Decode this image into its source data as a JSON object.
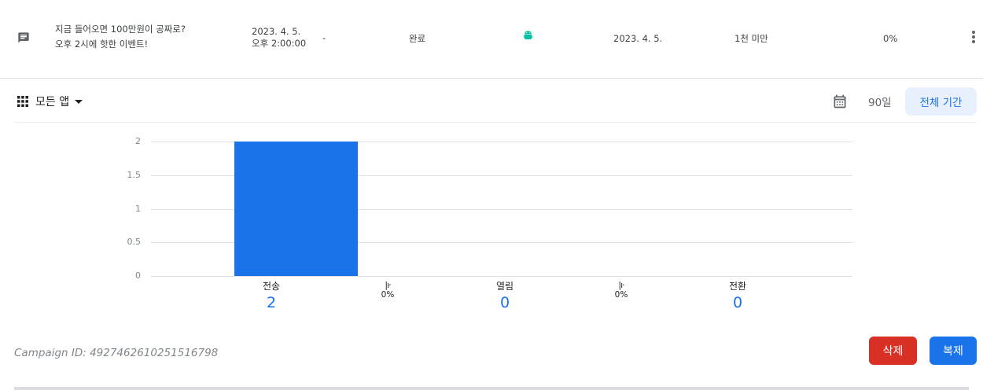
{
  "campaign_row": {
    "icon": "message-icon",
    "title_line1": "지금 들어오면 100만원이 공짜로?",
    "title_line2": "오후 2시에 핫한 이벤트!",
    "sent_date": "2023. 4. 5.",
    "sent_time": "오후 2:00:00",
    "dash": "-",
    "status": "완료",
    "platform_icon": "android-icon",
    "end_date": "2023. 4. 5.",
    "audience": "1천 미만",
    "rate": "0%"
  },
  "filter": {
    "apps_label": "모든 앱",
    "days_label": "90일",
    "period_label": "전체 기간"
  },
  "chart_data": {
    "type": "bar",
    "categories": [
      "전송",
      "열림",
      "전환"
    ],
    "values": [
      2,
      0,
      0
    ],
    "ylim": [
      0,
      2
    ],
    "yticks": [
      "0",
      "0.5",
      "1",
      "1.5",
      "2"
    ],
    "conversion_rates": [
      "0%",
      "0%"
    ],
    "grid": true,
    "accent": "#1a73e8"
  },
  "footer": {
    "campaign_id": "Campaign ID: 4927462610251516798",
    "delete_label": "삭제",
    "duplicate_label": "복제"
  },
  "colors": {
    "primary": "#1a73e8",
    "danger": "#d93025",
    "android": "#00bfa5"
  }
}
